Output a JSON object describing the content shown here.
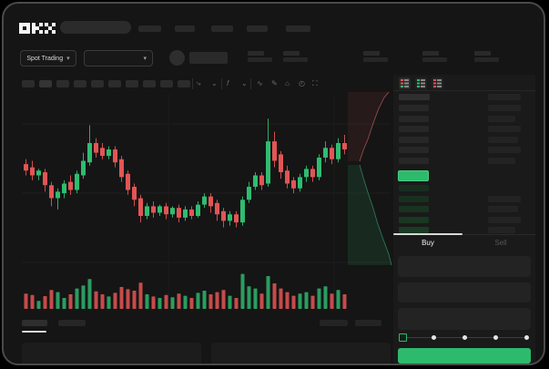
{
  "app": {
    "logo_text": "OKX"
  },
  "colors": {
    "candle_green": "#2ebd70",
    "candle_red": "#e25555",
    "volume_green": "#2a9d61",
    "volume_red": "#c74b4b",
    "accent_green": "#2eba6c",
    "depth_ask_line": "#a05252",
    "depth_bid_line": "#2e7f5e"
  },
  "ticker": {
    "market_selector_label": "Spot Trading"
  },
  "trade_panel": {
    "buy_label": "Buy",
    "sell_label": "Sell",
    "active_tab": "Buy",
    "slider_positions": [
      0,
      25,
      50,
      75,
      100
    ],
    "slider_value": 0
  },
  "orderbook": {
    "view_icons": [
      "orderbook-combined",
      "orderbook-bids-only",
      "orderbook-asks-only"
    ],
    "header": {
      "price_col_w": 34,
      "amount_col_w": 36
    },
    "asks": [
      {
        "price_w": 33,
        "amount_w": 36
      },
      {
        "price_w": 33,
        "amount_w": 30
      },
      {
        "price_w": 33,
        "amount_w": 36
      },
      {
        "price_w": 33,
        "amount_w": 33
      },
      {
        "price_w": 33,
        "amount_w": 36
      },
      {
        "price_w": 33,
        "amount_w": 30
      }
    ],
    "last_price_bar": {
      "color": "#2eba6c",
      "w": 34
    },
    "bids": [
      {
        "price_w": 33,
        "amount_w": 0
      },
      {
        "price_w": 33,
        "amount_w": 36
      },
      {
        "price_w": 33,
        "amount_w": 33
      },
      {
        "price_w": 33,
        "amount_w": 36
      },
      {
        "price_w": 33,
        "amount_w": 30
      }
    ]
  },
  "chart_data": [
    {
      "type": "candlestick",
      "title": "",
      "xlabel": "",
      "ylabel": "",
      "axis_labels_visible": false,
      "price_scale": [
        0,
        100
      ],
      "grid": true,
      "candles_ohlc": [
        [
          64,
          67,
          57,
          60
        ],
        [
          62,
          66,
          54,
          57
        ],
        [
          57,
          61,
          54,
          60
        ],
        [
          59,
          61,
          47,
          51
        ],
        [
          51,
          53,
          38,
          43
        ],
        [
          43,
          49,
          36,
          47
        ],
        [
          46,
          54,
          43,
          52
        ],
        [
          53,
          57,
          45,
          48
        ],
        [
          48,
          60,
          46,
          58
        ],
        [
          57,
          71,
          55,
          66
        ],
        [
          65,
          88,
          63,
          77
        ],
        [
          77,
          80,
          68,
          71
        ],
        [
          74,
          77,
          67,
          69
        ],
        [
          69,
          75,
          67,
          73
        ],
        [
          73,
          75,
          62,
          65
        ],
        [
          67,
          69,
          53,
          56
        ],
        [
          58,
          60,
          45,
          48
        ],
        [
          50,
          52,
          38,
          42
        ],
        [
          43,
          45,
          28,
          32
        ],
        [
          32,
          40,
          30,
          38
        ],
        [
          38,
          41,
          31,
          34
        ],
        [
          34,
          39,
          32,
          38
        ],
        [
          38,
          40,
          30,
          33
        ],
        [
          33,
          38,
          31,
          37
        ],
        [
          37,
          39,
          28,
          31
        ],
        [
          31,
          38,
          29,
          36
        ],
        [
          36,
          38,
          30,
          32
        ],
        [
          32,
          41,
          31,
          39
        ],
        [
          39,
          46,
          37,
          44
        ],
        [
          44,
          46,
          34,
          38
        ],
        [
          40,
          42,
          29,
          33
        ],
        [
          35,
          37,
          25,
          29
        ],
        [
          29,
          35,
          26,
          33
        ],
        [
          33,
          35,
          25,
          28
        ],
        [
          28,
          44,
          26,
          42
        ],
        [
          42,
          53,
          40,
          50
        ],
        [
          50,
          59,
          48,
          57
        ],
        [
          57,
          59,
          48,
          51
        ],
        [
          52,
          92,
          50,
          78
        ],
        [
          78,
          84,
          62,
          66
        ],
        [
          70,
          72,
          55,
          59
        ],
        [
          60,
          63,
          49,
          52
        ],
        [
          54,
          56,
          46,
          49
        ],
        [
          49,
          58,
          47,
          56
        ],
        [
          56,
          63,
          53,
          61
        ],
        [
          61,
          63,
          53,
          56
        ],
        [
          56,
          70,
          54,
          68
        ],
        [
          68,
          78,
          65,
          74
        ],
        [
          74,
          76,
          64,
          67
        ],
        [
          67,
          80,
          65,
          77
        ],
        [
          77,
          82,
          70,
          73
        ]
      ],
      "volume": [
        42,
        38,
        22,
        35,
        52,
        46,
        30,
        40,
        56,
        64,
        82,
        48,
        40,
        34,
        44,
        60,
        54,
        50,
        72,
        40,
        34,
        30,
        38,
        32,
        42,
        36,
        30,
        44,
        50,
        40,
        46,
        52,
        36,
        30,
        96,
        62,
        56,
        42,
        90,
        70,
        56,
        46,
        36,
        42,
        46,
        36,
        56,
        62,
        42,
        52,
        40
      ]
    },
    {
      "type": "area",
      "name": "depth-sideways",
      "asks_curve": [
        [
          45,
          2
        ],
        [
          40,
          8
        ],
        [
          34,
          20
        ],
        [
          28,
          36
        ],
        [
          22,
          54
        ],
        [
          17,
          66
        ],
        [
          13,
          78
        ]
      ],
      "bids_curve": [
        [
          13,
          82
        ],
        [
          17,
          96
        ],
        [
          22,
          112
        ],
        [
          28,
          130
        ],
        [
          33,
          147
        ],
        [
          39,
          164
        ],
        [
          45,
          180
        ],
        [
          48,
          192
        ]
      ]
    }
  ],
  "placeholders": {
    "nav_widths": [
      25,
      22,
      24,
      23,
      27
    ],
    "stat_offsets": [
      0,
      39,
      127,
      192,
      249
    ],
    "stat_top_w": 18,
    "stat_bottom_w": 27,
    "interval_count": 10,
    "bottom_tab_widths": [
      28,
      30
    ],
    "bottom_right_widths": [
      31,
      29
    ]
  }
}
